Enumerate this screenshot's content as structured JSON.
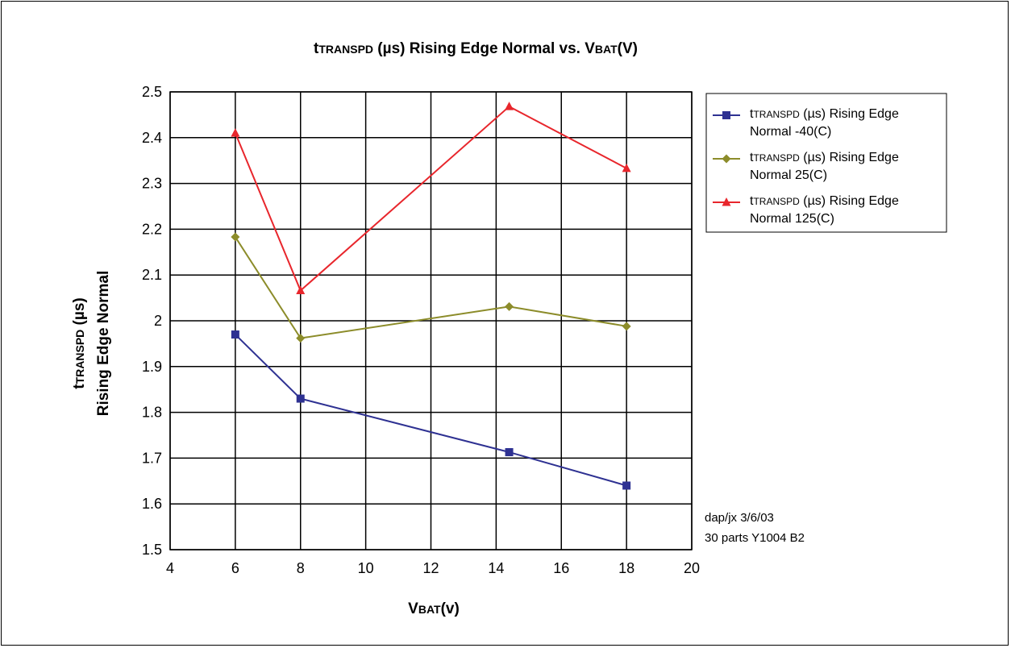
{
  "chart_data": {
    "type": "line",
    "title_prefix": "t",
    "title_sub": "TRANSPD",
    "title_rest": " (µs) Rising Edge Normal vs. V",
    "title_sub2": "BAT",
    "title_end": "(V)",
    "xlabel_main": "V",
    "xlabel_sub": "BAT",
    "xlabel_end": "(v)",
    "ylabel_line1_prefix": "t",
    "ylabel_line1_sub": "TRANSPD",
    "ylabel_line1_end": " (µs)",
    "ylabel_line2": "Rising Edge Normal",
    "xlim": [
      4,
      20
    ],
    "ylim": [
      1.5,
      2.5
    ],
    "xticks": [
      "4",
      "6",
      "8",
      "10",
      "12",
      "14",
      "16",
      "18",
      "20"
    ],
    "yticks": [
      "1.5",
      "1.6",
      "1.7",
      "1.8",
      "1.9",
      "2",
      "2.1",
      "2.2",
      "2.3",
      "2.4",
      "2.5"
    ],
    "grid": true,
    "legend_position": "right",
    "series": [
      {
        "name_prefix": "t",
        "name_sub": "TRANSPD",
        "name_line1_end": " (µs) Rising Edge",
        "name_line2": "Normal -40(C)",
        "color": "#2e3192",
        "marker": "square",
        "x": [
          6,
          8,
          14.4,
          18
        ],
        "y": [
          1.97,
          1.83,
          1.713,
          1.64
        ]
      },
      {
        "name_prefix": "t",
        "name_sub": "TRANSPD",
        "name_line1_end": " (µs) Rising Edge",
        "name_line2": "Normal 25(C)",
        "color": "#8c8c2a",
        "marker": "diamond",
        "x": [
          6,
          8,
          14.4,
          18
        ],
        "y": [
          2.183,
          1.962,
          2.031,
          1.988
        ]
      },
      {
        "name_prefix": "t",
        "name_sub": "TRANSPD",
        "name_line1_end": " (µs) Rising Edge",
        "name_line2": "Normal 125(C)",
        "color": "#e8262c",
        "marker": "triangle",
        "x": [
          6,
          8,
          14.4,
          18
        ],
        "y": [
          2.41,
          2.066,
          2.468,
          2.333
        ]
      }
    ],
    "annotation_lines": [
      "dap/jx 3/6/03",
      "30 parts Y1004 B2"
    ]
  }
}
